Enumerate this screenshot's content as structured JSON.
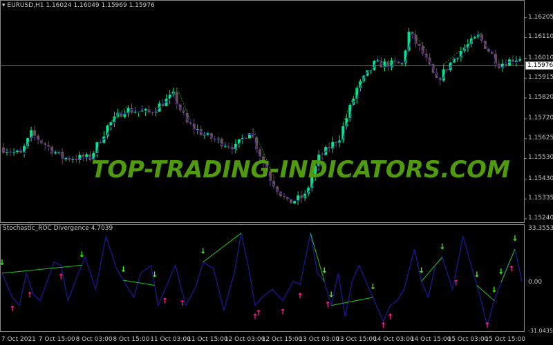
{
  "chart": {
    "symbol_header": "EURUSD,H1  1.16024 1.16049 1.15969 1.15976",
    "current_price": "1.15976",
    "price_ticks": [
      "1.16205",
      "1.16110",
      "1.16010",
      "1.15915",
      "1.15820",
      "1.15720",
      "1.15625",
      "1.15530",
      "1.15430",
      "1.15335",
      "1.15240"
    ],
    "price_range": [
      1.1522,
      1.1629
    ],
    "bull_color": "#00e58a",
    "bear_color": "#6b4a5a",
    "price_path": [
      [
        0,
        1.15582
      ],
      [
        6,
        1.15548
      ],
      [
        9,
        1.15648
      ],
      [
        18,
        1.15532
      ],
      [
        26,
        1.15532
      ],
      [
        31,
        1.15682
      ],
      [
        36,
        1.15765
      ],
      [
        43,
        1.15748
      ],
      [
        50,
        1.15832
      ],
      [
        54,
        1.15698
      ],
      [
        60,
        1.15632
      ],
      [
        68,
        1.15582
      ],
      [
        72,
        1.15665
      ],
      [
        78,
        1.15432
      ],
      [
        83,
        1.15315
      ],
      [
        88,
        1.15348
      ],
      [
        92,
        1.15532
      ],
      [
        98,
        1.15632
      ],
      [
        103,
        1.15865
      ],
      [
        108,
        1.15982
      ],
      [
        116,
        1.15982
      ],
      [
        118,
        1.16132
      ],
      [
        122,
        1.16032
      ],
      [
        126,
        1.15898
      ],
      [
        132,
        1.16032
      ],
      [
        138,
        1.16115
      ],
      [
        144,
        1.15982
      ],
      [
        150,
        1.16015
      ]
    ]
  },
  "indicator": {
    "title": "Stochastic_ROC Divergence 4.7039",
    "ticks": [
      "33.3553",
      "0.00",
      "-31.0435"
    ],
    "range": [
      -31.0435,
      33.3553
    ],
    "line_color": "#1a1aa0",
    "down_arrow_color": "#39ff14",
    "up_arrow_color": "#ff2090",
    "path": [
      [
        0,
        5
      ],
      [
        3,
        -10
      ],
      [
        5,
        -15
      ],
      [
        7,
        5
      ],
      [
        9,
        -8
      ],
      [
        11,
        -12
      ],
      [
        13,
        0
      ],
      [
        15,
        12
      ],
      [
        17,
        10
      ],
      [
        19,
        -12
      ],
      [
        22,
        5
      ],
      [
        24,
        15
      ],
      [
        27,
        -5
      ],
      [
        30,
        28
      ],
      [
        33,
        8
      ],
      [
        36,
        -3
      ],
      [
        38,
        -10
      ],
      [
        40,
        5
      ],
      [
        43,
        10
      ],
      [
        45,
        -15
      ],
      [
        47,
        -5
      ],
      [
        50,
        10
      ],
      [
        53,
        -15
      ],
      [
        56,
        -3
      ],
      [
        58,
        12
      ],
      [
        61,
        8
      ],
      [
        64,
        -18
      ],
      [
        67,
        5
      ],
      [
        69,
        30
      ],
      [
        71,
        10
      ],
      [
        73,
        -15
      ],
      [
        75,
        -10
      ],
      [
        78,
        -5
      ],
      [
        81,
        -12
      ],
      [
        84,
        0
      ],
      [
        86,
        -2
      ],
      [
        89,
        30
      ],
      [
        91,
        5
      ],
      [
        93,
        0
      ],
      [
        95,
        -15
      ],
      [
        97,
        5
      ],
      [
        99,
        -22
      ],
      [
        101,
        0
      ],
      [
        103,
        10
      ],
      [
        106,
        -5
      ],
      [
        108,
        -15
      ],
      [
        110,
        -25
      ],
      [
        112,
        -15
      ],
      [
        114,
        -12
      ],
      [
        116,
        -5
      ],
      [
        119,
        20
      ],
      [
        121,
        0
      ],
      [
        123,
        -10
      ],
      [
        125,
        10
      ],
      [
        127,
        15
      ],
      [
        130,
        -5
      ],
      [
        133,
        28
      ],
      [
        136,
        5
      ],
      [
        138,
        -10
      ],
      [
        140,
        -28
      ],
      [
        142,
        -12
      ],
      [
        145,
        5
      ],
      [
        148,
        20
      ],
      [
        150,
        0
      ]
    ],
    "down_arrows": [
      0,
      23,
      35,
      44,
      58,
      69,
      89,
      93,
      95,
      107,
      121,
      127,
      137,
      142,
      144,
      148
    ],
    "up_arrows": [
      3,
      8,
      17,
      47,
      52,
      73,
      74,
      81,
      86,
      94,
      110,
      112,
      131,
      140,
      147
    ]
  },
  "time_axis": [
    "7 Oct 2021",
    "7 Oct 15:00",
    "8 Oct 03:00",
    "8 Oct 15:00",
    "11 Oct 03:00",
    "11 Oct 15:00",
    "12 Oct 03:00",
    "12 Oct 15:00",
    "13 Oct 03:00",
    "13 Oct 15:00",
    "14 Oct 03:00",
    "14 Oct 15:00",
    "15 Oct 03:00",
    "15 Oct 15:00"
  ],
  "watermark": "TOP-TRADING-INDICATORS.COM"
}
